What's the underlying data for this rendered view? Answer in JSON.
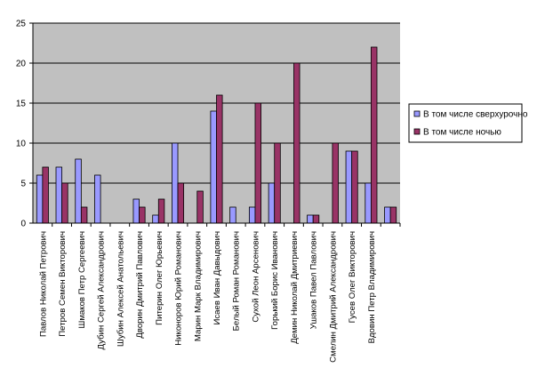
{
  "chart_data": {
    "type": "bar",
    "categories": [
      "Павлов Николай Петрович",
      "Петров Семен Викторович",
      "Шмаков Петр Сергеевич",
      "Дубин Сергей Александрович",
      "Шубин Алексей Анатольевич",
      "Дворин Дмитрий Павлович",
      "Питерин Олег Юрьевич",
      "Никоноров Юрий Романович",
      "Марин Марк Владимирович",
      "Исаев Иван Давыдович",
      "Белый Роман Романович",
      "Сухой Леон Арсенович",
      "Горький Борис Иванович",
      "Демин Николай Дмитриевич",
      "Ушаков Павел Павлович",
      "Смелин Дмитрий Александрович",
      "Гусев Олег Викторович",
      "Вдовин Петр Владимирович",
      ""
    ],
    "series": [
      {
        "name": "В том числе сверхурочно",
        "color": "#9999ff",
        "values": [
          6,
          7,
          8,
          6,
          0,
          3,
          1,
          10,
          0,
          14,
          2,
          2,
          5,
          0,
          1,
          0,
          9,
          5,
          2
        ]
      },
      {
        "name": "В том числе ночью",
        "color": "#993366",
        "values": [
          7,
          5,
          2,
          0,
          0,
          2,
          3,
          5,
          4,
          16,
          0,
          15,
          10,
          20,
          1,
          10,
          9,
          22,
          2
        ]
      }
    ],
    "ylim": [
      0,
      25
    ],
    "yticks": [
      0,
      5,
      10,
      15,
      20,
      25
    ],
    "grid": true,
    "plot_background": "#c0c0c0",
    "legend_position": "right"
  }
}
